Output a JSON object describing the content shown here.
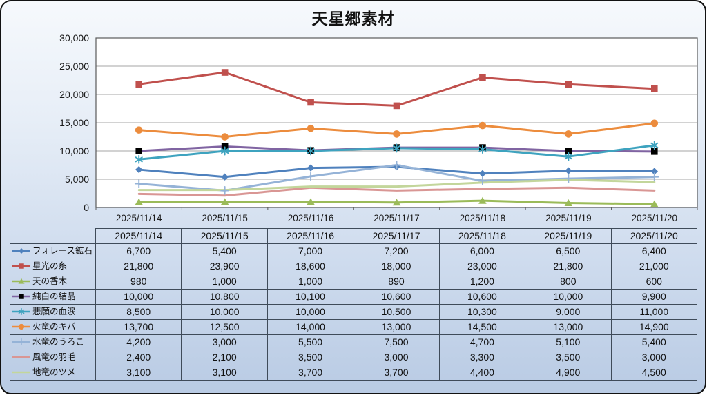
{
  "title": "天星郷素材",
  "colors": {
    "frame_border": "#121212",
    "bg_top": "#f6f9fc",
    "bg_bottom": "#b9cbe4",
    "plot_bg": "#ffffff",
    "plot_border": "#5a5a5a",
    "gridline": "#a6a6a6",
    "table_border": "#3f4b59",
    "text": "#111111"
  },
  "chart_data": {
    "type": "line",
    "title": "天星郷素材",
    "x": [
      "2025/11/14",
      "2025/11/15",
      "2025/11/16",
      "2025/11/17",
      "2025/11/18",
      "2025/11/19",
      "2025/11/20"
    ],
    "series": [
      {
        "name": "フォレース鉱石",
        "color": "#4f81bd",
        "marker": "diamond",
        "values": [
          6700,
          5400,
          7000,
          7200,
          6000,
          6500,
          6400
        ]
      },
      {
        "name": "星光の糸",
        "color": "#c0504d",
        "marker": "square",
        "values": [
          21800,
          23900,
          18600,
          18000,
          23000,
          21800,
          21000
        ]
      },
      {
        "name": "天の香木",
        "color": "#9bbb59",
        "marker": "triangle",
        "values": [
          980,
          1000,
          1000,
          890,
          1200,
          800,
          600
        ]
      },
      {
        "name": "純白の結晶",
        "color": "#8064a2",
        "marker": "square",
        "marker_color": "#000000",
        "values": [
          10000,
          10800,
          10100,
          10600,
          10600,
          10000,
          9900
        ]
      },
      {
        "name": "悲願の血涙",
        "color": "#3ea3bf",
        "marker": "asterisk",
        "values": [
          8500,
          10000,
          10000,
          10500,
          10300,
          9000,
          11000
        ]
      },
      {
        "name": "火竜のキバ",
        "color": "#ec8c3d",
        "marker": "circle",
        "values": [
          13700,
          12500,
          14000,
          13000,
          14500,
          13000,
          14900
        ]
      },
      {
        "name": "水竜のうろこ",
        "color": "#95b3d7",
        "marker": "plus",
        "values": [
          4200,
          3000,
          5500,
          7500,
          4700,
          5100,
          5400
        ]
      },
      {
        "name": "風竜の羽毛",
        "color": "#d99694",
        "marker": "none",
        "values": [
          2400,
          2100,
          3500,
          3000,
          3300,
          3500,
          3000
        ]
      },
      {
        "name": "地竜のツメ",
        "color": "#c3d69b",
        "marker": "none",
        "values": [
          3100,
          3100,
          3700,
          3700,
          4400,
          4900,
          4500
        ]
      }
    ],
    "ylim": [
      0,
      30000
    ],
    "ytick_step": 5000,
    "grid": "horizontal",
    "legend_position": "table-left",
    "number_format": "thousands-comma"
  },
  "table": {
    "header": [
      "2025/11/14",
      "2025/11/15",
      "2025/11/16",
      "2025/11/17",
      "2025/11/18",
      "2025/11/19",
      "2025/11/20"
    ]
  }
}
